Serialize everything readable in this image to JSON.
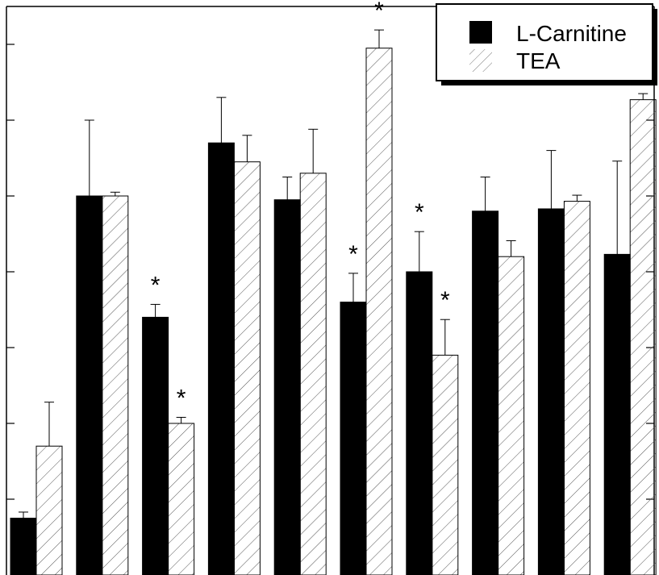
{
  "chart_data": {
    "type": "bar",
    "title": "",
    "xlabel": "",
    "ylabel": "",
    "ylim": [
      0,
      7.5
    ],
    "grid": false,
    "legend_position": "top-right",
    "tick_labels": false,
    "categories": [
      "",
      "",
      "",
      "",
      "",
      "",
      "",
      "",
      "",
      ""
    ],
    "series": [
      {
        "name": "L-Carnitine",
        "fill": "solid",
        "values": [
          0.75,
          5.0,
          3.4,
          5.7,
          4.95,
          3.6,
          4.0,
          4.8,
          4.83,
          4.23
        ],
        "errors": [
          0.08,
          1.0,
          0.17,
          0.6,
          0.3,
          0.38,
          0.53,
          0.45,
          0.77,
          1.23
        ],
        "significant": [
          false,
          false,
          true,
          false,
          false,
          true,
          true,
          false,
          false,
          false
        ]
      },
      {
        "name": "TEA",
        "fill": "hatched",
        "values": [
          1.7,
          5.0,
          2.0,
          5.45,
          5.3,
          6.95,
          2.9,
          4.2,
          4.93,
          6.27
        ],
        "errors": [
          0.58,
          0.05,
          0.08,
          0.35,
          0.58,
          0.24,
          0.47,
          0.21,
          0.08,
          0.08
        ],
        "significant": [
          false,
          false,
          true,
          false,
          false,
          true,
          true,
          false,
          false,
          false
        ]
      }
    ],
    "significance_marker": "*"
  },
  "colors": {
    "solid": "#000000",
    "hatch": "#444444",
    "axis": "#000000"
  }
}
